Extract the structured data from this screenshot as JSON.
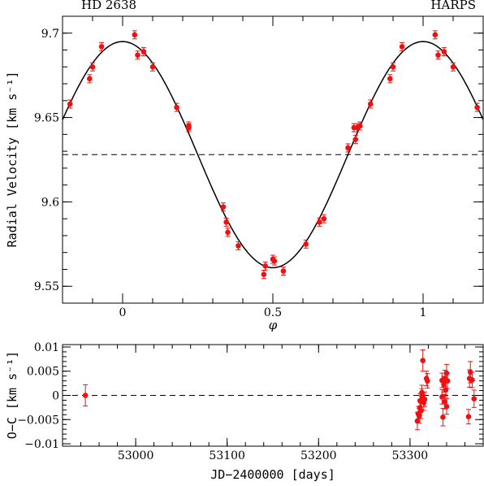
{
  "chart_data": [
    {
      "type": "scatter",
      "title_left": "HD 2638",
      "title_right": "HARPS",
      "xlabel": "φ",
      "ylabel": "Radial Velocity [km s⁻¹]",
      "xlim": [
        -0.2,
        1.2
      ],
      "ylim": [
        9.54,
        9.71
      ],
      "xticks": [
        "0",
        "0.5",
        "1"
      ],
      "xtick_values": [
        0,
        0.5,
        1
      ],
      "yticks": [
        "9.55",
        "9.6",
        "9.65",
        "9.7"
      ],
      "ytick_values": [
        9.55,
        9.6,
        9.65,
        9.7
      ],
      "model": {
        "gamma": 9.628,
        "K": 0.067
      },
      "systemic_velocity": 9.628,
      "colors": {
        "points": "#ee1111",
        "model": "#000000"
      },
      "points": [
        [
          -0.175,
          9.658
        ],
        [
          -0.11,
          9.673
        ],
        [
          -0.1,
          9.68
        ],
        [
          -0.07,
          9.692
        ],
        [
          0.04,
          9.699
        ],
        [
          0.05,
          9.687
        ],
        [
          0.07,
          9.689
        ],
        [
          0.1,
          9.68
        ],
        [
          0.18,
          9.656
        ],
        [
          0.22,
          9.645
        ],
        [
          0.22,
          9.644
        ],
        [
          0.335,
          9.597
        ],
        [
          0.345,
          9.588
        ],
        [
          0.35,
          9.582
        ],
        [
          0.385,
          9.574
        ],
        [
          0.47,
          9.557
        ],
        [
          0.475,
          9.562
        ],
        [
          0.5,
          9.566
        ],
        [
          0.505,
          9.565
        ],
        [
          0.535,
          9.559
        ],
        [
          0.61,
          9.575
        ],
        [
          0.655,
          9.588
        ],
        [
          0.67,
          9.59
        ],
        [
          0.75,
          9.632
        ],
        [
          0.77,
          9.644
        ],
        [
          0.775,
          9.637
        ],
        [
          0.78,
          9.644
        ],
        [
          0.79,
          9.645
        ],
        [
          0.825,
          9.658
        ],
        [
          0.89,
          9.673
        ],
        [
          0.9,
          9.68
        ],
        [
          0.93,
          9.692
        ],
        [
          1.04,
          9.699
        ],
        [
          1.05,
          9.687
        ],
        [
          1.07,
          9.689
        ],
        [
          1.1,
          9.68
        ],
        [
          1.18,
          9.656
        ]
      ]
    },
    {
      "type": "scatter",
      "xlabel": "JD−2400000 [days]",
      "ylabel": "O−C [km s⁻¹]",
      "xlim": [
        52920,
        53380
      ],
      "ylim": [
        -0.0105,
        0.0105
      ],
      "xticks": [
        "53000",
        "53100",
        "53200",
        "53300"
      ],
      "xtick_values": [
        53000,
        53100,
        53200,
        53300
      ],
      "yticks": [
        "−0.01",
        "−0.005",
        "0",
        "0.005",
        "0.01"
      ],
      "ytick_values": [
        -0.01,
        -0.005,
        0,
        0.005,
        0.01
      ],
      "zero_line": 0,
      "colors": {
        "points": "#ee1111"
      },
      "points": [
        [
          52945,
          0.0,
          0.0022
        ],
        [
          53308,
          -0.0053,
          0.0018
        ],
        [
          53309,
          -0.0038,
          0.0015
        ],
        [
          53310,
          -0.0042,
          0.0015
        ],
        [
          53311,
          -0.0025,
          0.0015
        ],
        [
          53311,
          -0.0011,
          0.0015
        ],
        [
          53312,
          -0.0032,
          0.0016
        ],
        [
          53313,
          -0.0001,
          0.0015
        ],
        [
          53313,
          0.0006,
          0.0015
        ],
        [
          53314,
          0.0072,
          0.0022
        ],
        [
          53315,
          -0.0015,
          0.0016
        ],
        [
          53316,
          -0.0008,
          0.0015
        ],
        [
          53318,
          0.0035,
          0.0015
        ],
        [
          53319,
          0.003,
          0.0015
        ],
        [
          53335,
          0.0031,
          0.0015
        ],
        [
          53335,
          -0.0003,
          0.0015
        ],
        [
          53336,
          -0.0045,
          0.0018
        ],
        [
          53337,
          0.0023,
          0.0016
        ],
        [
          53338,
          -0.0013,
          0.0015
        ],
        [
          53338,
          0.0035,
          0.0017
        ],
        [
          53339,
          0.0011,
          0.0015
        ],
        [
          53340,
          -0.0023,
          0.0016
        ],
        [
          53340,
          0.0046,
          0.0018
        ],
        [
          53341,
          0.003,
          0.0016
        ],
        [
          53364,
          -0.0044,
          0.0015
        ],
        [
          53365,
          0.0035,
          0.0018
        ],
        [
          53366,
          0.0048,
          0.0022
        ],
        [
          53368,
          0.0032,
          0.0016
        ],
        [
          53370,
          -0.0007,
          0.0018
        ]
      ]
    }
  ]
}
